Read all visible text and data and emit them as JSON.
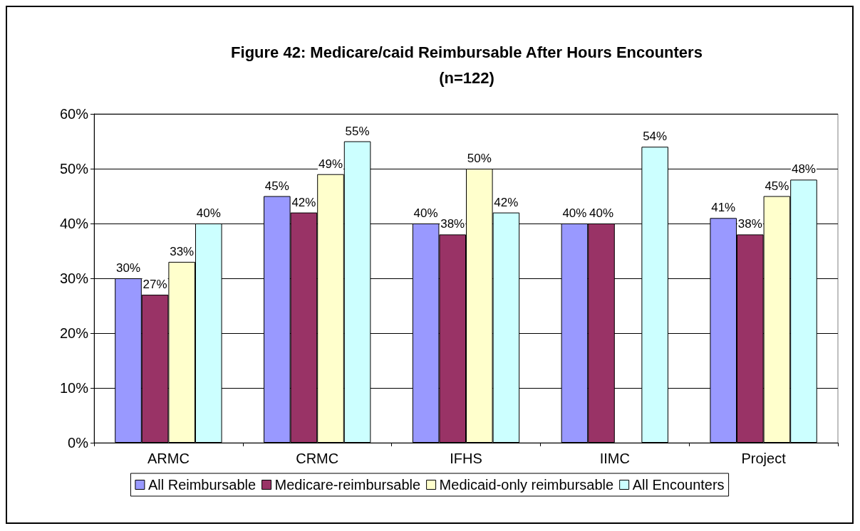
{
  "chart_data": {
    "type": "bar",
    "title": "Figure 42: Medicare/caid Reimbursable After Hours Encounters\n(n=122)",
    "categories": [
      "ARMC",
      "CRMC",
      "IFHS",
      "IIMC",
      "Project"
    ],
    "series": [
      {
        "name": "All Reimbursable",
        "color": "#9999ff",
        "values": [
          30,
          45,
          40,
          40,
          41
        ],
        "value_labels": [
          "30%",
          "45%",
          "40%",
          "40%",
          "41%"
        ]
      },
      {
        "name": "Medicare-reimbursable",
        "color": "#993366",
        "values": [
          27,
          42,
          38,
          40,
          38
        ],
        "value_labels": [
          "27%",
          "42%",
          "38%",
          "40%",
          "38%"
        ]
      },
      {
        "name": "Medicaid-only reimbursable",
        "color": "#ffffcc",
        "values": [
          33,
          49,
          50,
          null,
          45
        ],
        "value_labels": [
          "33%",
          "49%",
          "50%",
          null,
          "45%"
        ]
      },
      {
        "name": "All Encounters",
        "color": "#ccffff",
        "values": [
          40,
          55,
          42,
          54,
          48
        ],
        "value_labels": [
          "40%",
          "55%",
          "42%",
          "54%",
          "48%"
        ]
      }
    ],
    "ylim": [
      0,
      60
    ],
    "yticks": [
      {
        "value": 0,
        "label": "0%"
      },
      {
        "value": 10,
        "label": "10%"
      },
      {
        "value": 20,
        "label": "20%"
      },
      {
        "value": 30,
        "label": "30%"
      },
      {
        "value": 40,
        "label": "40%"
      },
      {
        "value": 50,
        "label": "50%"
      },
      {
        "value": 60,
        "label": "60%"
      }
    ],
    "grid": "y",
    "legend": "bottom"
  }
}
